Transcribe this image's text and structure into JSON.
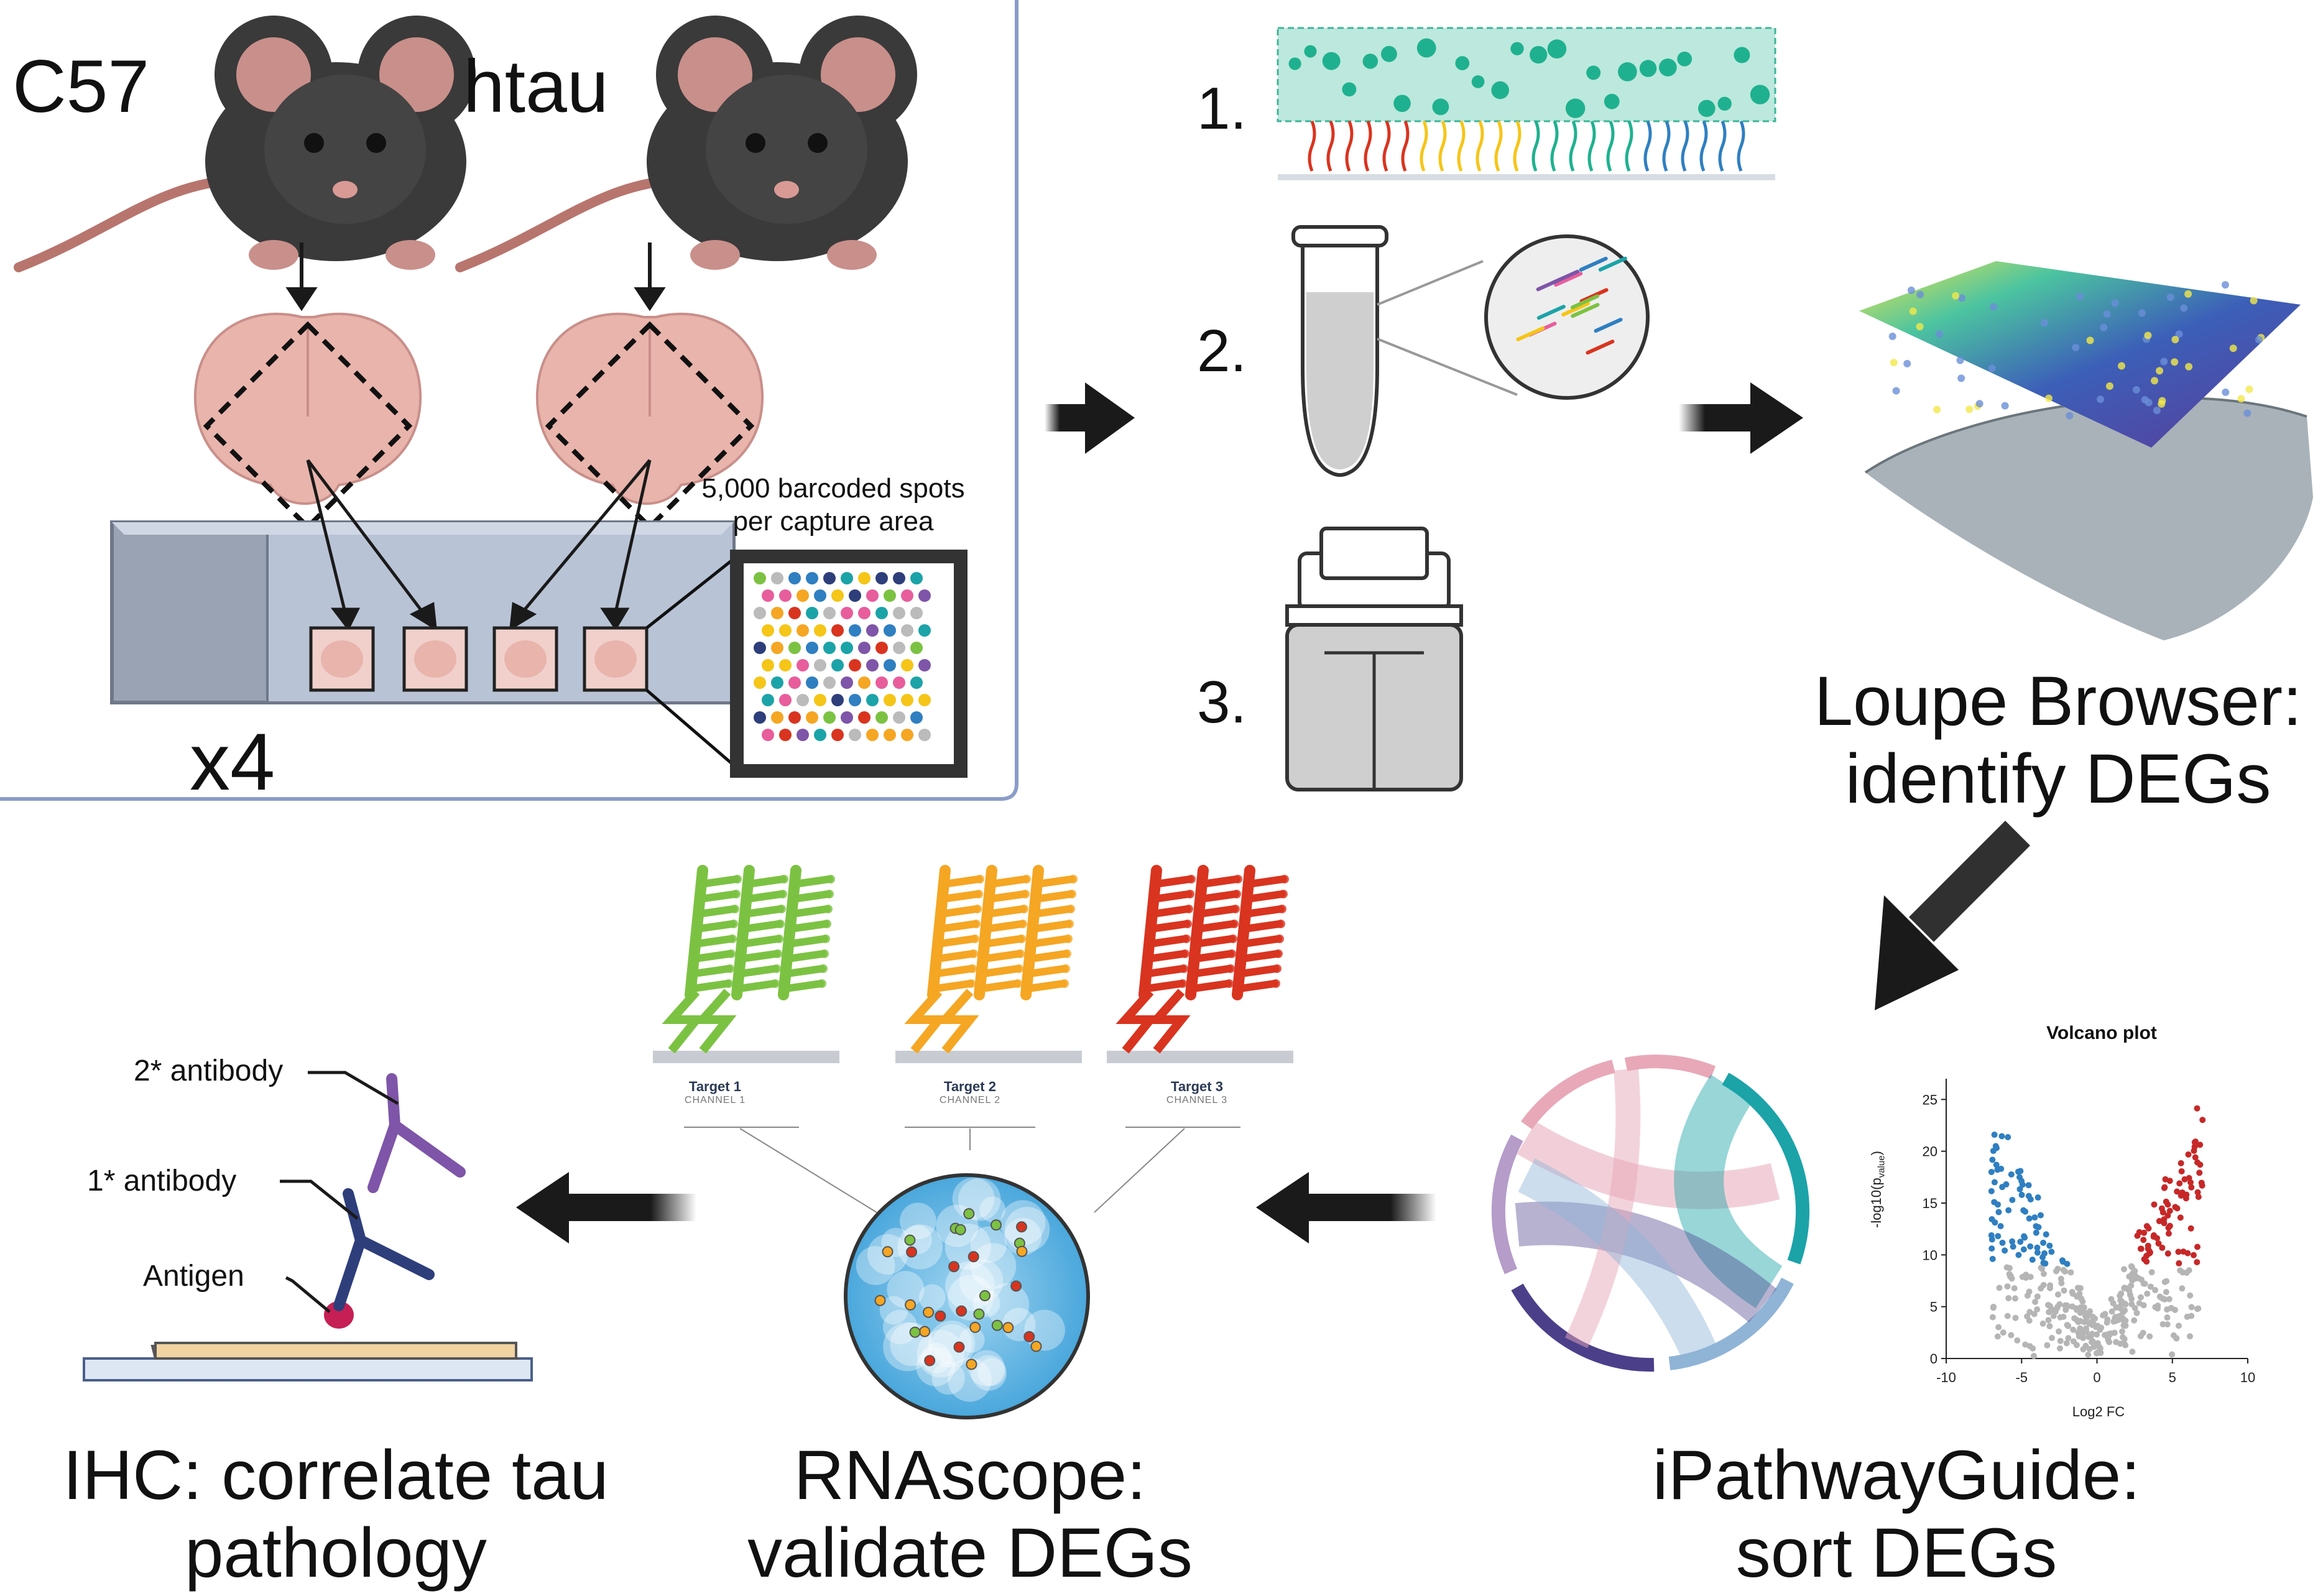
{
  "panel_mice": {
    "mouse_1_label": "C57",
    "mouse_2_label": "htau",
    "replicates": "x4",
    "spots_line1": "5,000 barcoded spots",
    "spots_line2": "per capture area"
  },
  "workflow": {
    "step1": "1.",
    "step2": "2.",
    "step3": "3."
  },
  "loupe": {
    "line1": "Loupe Browser:",
    "line2": "identify DEGs"
  },
  "ipathway": {
    "line1": "iPathwayGuide:",
    "line2": "sort DEGs"
  },
  "rnascope": {
    "line1": "RNAscope:",
    "line2": "validate DEGs",
    "targets": [
      {
        "name": "Target 1",
        "channel": "CHANNEL 1",
        "color": "#7cc242"
      },
      {
        "name": "Target 2",
        "channel": "CHANNEL 2",
        "color": "#f5a623"
      },
      {
        "name": "Target 3",
        "channel": "CHANNEL 3",
        "color": "#d9341f"
      }
    ]
  },
  "ihc": {
    "line1": "IHC: correlate tau",
    "line2": "pathology",
    "label_secondary": "2* antibody",
    "label_primary": "1* antibody",
    "label_antigen": "Antigen"
  },
  "volcano": {
    "title": "Volcano plot",
    "xlabel": "Log2 FC",
    "ylabel": "-log10(p",
    "ylabel_sub": "value",
    "ylabel_end": ")",
    "xticks": [
      "-10",
      "-5",
      "0",
      "5",
      "10"
    ],
    "yticks": [
      "0",
      "5",
      "10",
      "15",
      "20",
      "25"
    ],
    "colors": {
      "down": "#2f7fc1",
      "up": "#c62828",
      "ns": "#b5b5b5"
    }
  },
  "colors": {
    "arrow": "#1a1a1a",
    "panel_border": "#8a9cc8",
    "mouse": "#3a3a3a",
    "brain": "#e8b4ac"
  }
}
